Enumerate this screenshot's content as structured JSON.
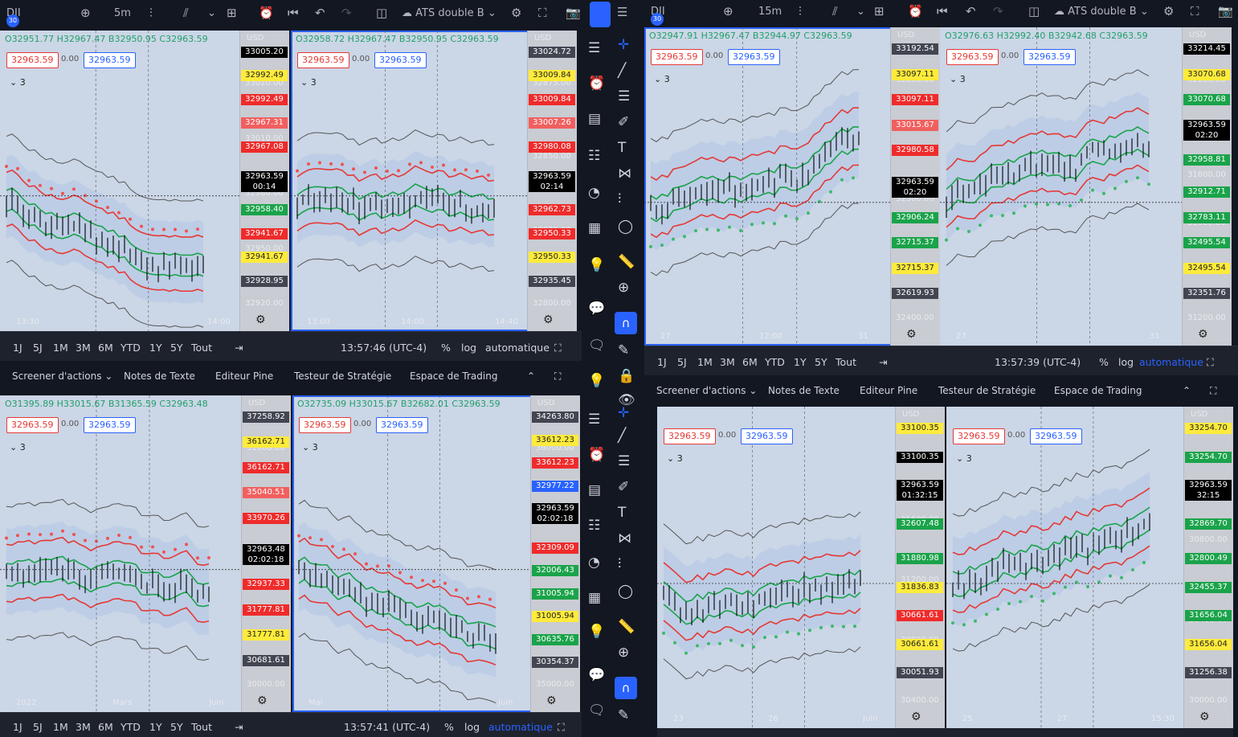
{
  "symbol": "DJI",
  "symbol_badge": "30",
  "indicator": "ATS double B",
  "indicator_count": "3",
  "range_buttons": [
    "1J",
    "5J",
    "1M",
    "3M",
    "6M",
    "YTD",
    "1Y",
    "5Y",
    "Tout"
  ],
  "pct_label": "%",
  "log_label": "log",
  "auto_label": "automatique",
  "currency": "USD",
  "bottom_tabs": [
    "Screener d'actions",
    "Notes de Texte",
    "Editeur Pine",
    "Testeur de Stratégie",
    "Espace de Trading"
  ],
  "bottom_tabs_alt": [
    "Screener d'actions",
    "Notes de Texte",
    "Editeur Pine",
    "Testeur de Stratégie",
    "Espace de Trading"
  ],
  "left_window": {
    "interval": "5m",
    "clock_top": "13:57:46 (UTC-4)",
    "clock_bottom": "13:57:41 (UTC-4)",
    "panes": [
      {
        "ohlc": "O32951.77 H32967.47 B32950.95 C32963.59",
        "bid": "32963.59",
        "spread": "0.00",
        "ask": "32963.59",
        "ticks": [
          "33020.00",
          "33010.00",
          "32980.00",
          "32950.00",
          "32920.00"
        ],
        "tags": [
          {
            "v": "33005.20",
            "c": "k"
          },
          {
            "v": "32992.49",
            "c": "y"
          },
          {
            "v": "32992.49",
            "c": "r"
          },
          {
            "v": "32967.31",
            "c": "pk"
          },
          {
            "v": "32967.08",
            "c": "r"
          },
          {
            "v": "32963.59\n00:14",
            "c": "k",
            "big": true
          },
          {
            "v": "32958.40",
            "c": "g"
          },
          {
            "v": "32941.67",
            "c": "r"
          },
          {
            "v": "32941.67",
            "c": "y"
          },
          {
            "v": "32928.95",
            "c": "gr"
          }
        ],
        "time": [
          "13:30",
          "14:00"
        ]
      },
      {
        "ohlc": "O32958.72 H32967.47 B32950.95 C32963.59",
        "bid": "32963.59",
        "spread": "0.00",
        "ask": "32963.59",
        "ticks": [
          "32875.00",
          "32850.00",
          "32825.00",
          "32800.00"
        ],
        "tags": [
          {
            "v": "33024.72",
            "c": "gr"
          },
          {
            "v": "33009.84",
            "c": "y"
          },
          {
            "v": "33009.84",
            "c": "r"
          },
          {
            "v": "33007.26",
            "c": "pk"
          },
          {
            "v": "32980.08",
            "c": "r"
          },
          {
            "v": "32963.59\n02:14",
            "c": "k",
            "big": true
          },
          {
            "v": "32962.73",
            "c": "r"
          },
          {
            "v": "32950.33",
            "c": "r"
          },
          {
            "v": "32950.33",
            "c": "y"
          },
          {
            "v": "32935.45",
            "c": "gr"
          }
        ],
        "time": [
          "13:00",
          "14:00",
          "14:40"
        ]
      },
      {
        "ohlc": "O31395.89 H33015.67 B31365.59 C32963.48",
        "bid": "32963.59",
        "spread": "0.00",
        "ask": "32963.59",
        "ticks": [
          "31000.00",
          "30000.00"
        ],
        "tags": [
          {
            "v": "37258.92",
            "c": "gr"
          },
          {
            "v": "36162.71",
            "c": "y"
          },
          {
            "v": "36162.71",
            "c": "r"
          },
          {
            "v": "35040.51",
            "c": "pk"
          },
          {
            "v": "33970.26",
            "c": "r"
          },
          {
            "v": "32963.48\n02:02:18",
            "c": "k",
            "big": true
          },
          {
            "v": "32937.33",
            "c": "r"
          },
          {
            "v": "31777.81",
            "c": "r"
          },
          {
            "v": "31777.81",
            "c": "y"
          },
          {
            "v": "30681.61",
            "c": "gr"
          }
        ],
        "time": [
          "2022",
          "Mars",
          "Juin"
        ]
      },
      {
        "ohlc": "O32735.09 H33015.67 B32682.01 C32963.59",
        "bid": "32963.59",
        "spread": "0.00",
        "ask": "32963.59",
        "ticks": [
          "36000.00",
          "35000.00"
        ],
        "tags": [
          {
            "v": "34263.80",
            "c": "gr"
          },
          {
            "v": "33612.23",
            "c": "y"
          },
          {
            "v": "33612.23",
            "c": "r"
          },
          {
            "v": "32977.22",
            "c": "bl"
          },
          {
            "v": "32963.59\n02:02:18",
            "c": "k",
            "big": true
          },
          {
            "v": "32309.09",
            "c": "r"
          },
          {
            "v": "32006.43",
            "c": "g"
          },
          {
            "v": "31005.94",
            "c": "g"
          },
          {
            "v": "31005.94",
            "c": "y"
          },
          {
            "v": "30635.76",
            "c": "g"
          },
          {
            "v": "30354.37",
            "c": "gr"
          }
        ],
        "time": [
          "Mai",
          "Juin"
        ]
      }
    ]
  },
  "right_window": {
    "interval": "15m",
    "clock": "13:57:39 (UTC-4)",
    "panes": [
      {
        "ohlc": "O32947.91 H32967.47 B32944.97 C32963.59",
        "bid": "32963.59",
        "spread": "0.00",
        "ask": "32963.59",
        "ticks": [
          "32800.00",
          "32500.00",
          "32400.00"
        ],
        "tags": [
          {
            "v": "33192.54",
            "c": "gr"
          },
          {
            "v": "33097.11",
            "c": "y"
          },
          {
            "v": "33097.11",
            "c": "r"
          },
          {
            "v": "33015.67",
            "c": "pk"
          },
          {
            "v": "32980.58",
            "c": "r"
          },
          {
            "v": "32963.59\n02:20",
            "c": "k",
            "big": true
          },
          {
            "v": "32906.24",
            "c": "g"
          },
          {
            "v": "32715.37",
            "c": "g"
          },
          {
            "v": "32715.37",
            "c": "y"
          },
          {
            "v": "32619.93",
            "c": "gr"
          }
        ],
        "time": [
          "27",
          "12:00",
          "31"
        ]
      },
      {
        "ohlc": "O32976.63 H32992.40 B32942.68 C32963.59",
        "bid": "32963.59",
        "spread": "0.00",
        "ask": "32963.59",
        "ticks": [
          "32200.00",
          "32000.00",
          "31800.00",
          "31600.00",
          "31400.00",
          "31200.00"
        ],
        "tags": [
          {
            "v": "33214.45",
            "c": "k"
          },
          {
            "v": "33070.68",
            "c": "y"
          },
          {
            "v": "33070.68",
            "c": "g"
          },
          {
            "v": "32963.59\n02:20",
            "c": "k",
            "big": true
          },
          {
            "v": "32958.81",
            "c": "g"
          },
          {
            "v": "32912.71",
            "c": "g"
          },
          {
            "v": "32783.11",
            "c": "g"
          },
          {
            "v": "32495.54",
            "c": "g"
          },
          {
            "v": "32495.54",
            "c": "y"
          },
          {
            "v": "32351.76",
            "c": "gr"
          }
        ],
        "time": [
          "27",
          "31"
        ]
      },
      {
        "ohlc": "",
        "bid": "32963.59",
        "spread": "0.00",
        "ask": "32963.59",
        "ticks": [
          "32400.00",
          "31600.00",
          "31200.00",
          "30800.00",
          "30400.00"
        ],
        "tags": [
          {
            "v": "33100.35",
            "c": "y"
          },
          {
            "v": "33100.35",
            "c": "k"
          },
          {
            "v": "32963.59\n01:32:15",
            "c": "k",
            "big": true
          },
          {
            "v": "32607.48",
            "c": "g"
          },
          {
            "v": "31880.98",
            "c": "g"
          },
          {
            "v": "31836.83",
            "c": "y"
          },
          {
            "v": "30661.61",
            "c": "r"
          },
          {
            "v": "30661.61",
            "c": "y"
          },
          {
            "v": "30051.93",
            "c": "gr"
          }
        ],
        "time": [
          "23",
          "26",
          "Juin"
        ]
      },
      {
        "ohlc": "",
        "bid": "32963.59",
        "spread": "0.00",
        "ask": "32963.59",
        "ticks": [
          "32000.00",
          "30800.00",
          "30400.00",
          "30000.00"
        ],
        "tags": [
          {
            "v": "33254.70",
            "c": "y"
          },
          {
            "v": "33254.70",
            "c": "g"
          },
          {
            "v": "32963.59\n32:15",
            "c": "k",
            "big": true
          },
          {
            "v": "32869.70",
            "c": "g"
          },
          {
            "v": "32800.49",
            "c": "g"
          },
          {
            "v": "32455.37",
            "c": "g"
          },
          {
            "v": "31656.04",
            "c": "g"
          },
          {
            "v": "31656.04",
            "c": "y"
          },
          {
            "v": "31256.38",
            "c": "gr"
          }
        ],
        "time": [
          "25",
          "27",
          "15:30"
        ]
      }
    ]
  }
}
